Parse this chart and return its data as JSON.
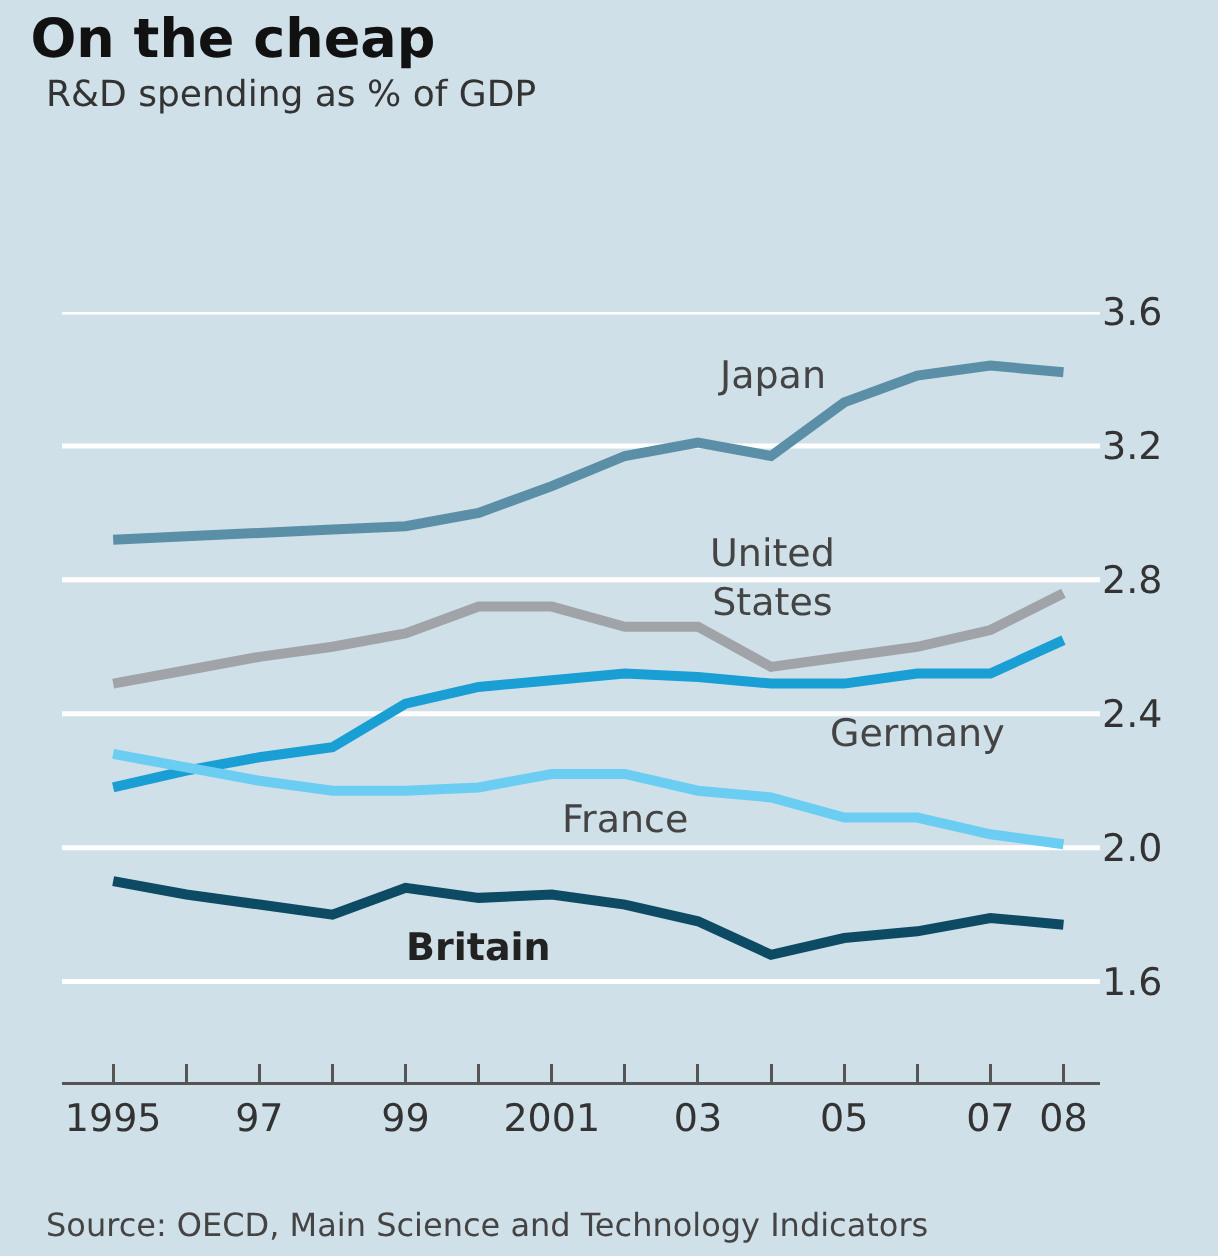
{
  "chart_data": {
    "type": "line",
    "title": "On the cheap",
    "subtitle": "R&D spending as % of GDP",
    "x": [
      1995,
      1996,
      1997,
      1998,
      1999,
      2000,
      2001,
      2002,
      2003,
      2004,
      2005,
      2006,
      2007,
      2008
    ],
    "series": [
      {
        "name": "Japan",
        "color": "#5b8fa8",
        "values": [
          2.92,
          2.93,
          2.94,
          2.95,
          2.96,
          3.0,
          3.08,
          3.17,
          3.21,
          3.17,
          3.33,
          3.41,
          3.44,
          3.42
        ]
      },
      {
        "name": "United States",
        "color": "#a0a4a8",
        "values": [
          2.49,
          2.53,
          2.57,
          2.6,
          2.64,
          2.72,
          2.72,
          2.66,
          2.66,
          2.54,
          2.57,
          2.6,
          2.65,
          2.76
        ]
      },
      {
        "name": "Germany",
        "color": "#1a9fd4",
        "values": [
          2.18,
          2.23,
          2.27,
          2.3,
          2.43,
          2.48,
          2.5,
          2.52,
          2.51,
          2.49,
          2.49,
          2.52,
          2.52,
          2.62
        ]
      },
      {
        "name": "France",
        "color": "#6ccdf2",
        "values": [
          2.28,
          2.24,
          2.2,
          2.17,
          2.17,
          2.18,
          2.22,
          2.22,
          2.17,
          2.15,
          2.09,
          2.09,
          2.04,
          2.01
        ]
      },
      {
        "name": "Britain",
        "color": "#0d4a63",
        "values": [
          1.9,
          1.86,
          1.83,
          1.8,
          1.88,
          1.85,
          1.86,
          1.83,
          1.78,
          1.68,
          1.73,
          1.75,
          1.79,
          1.77
        ]
      }
    ],
    "xlim": [
      1994.3,
      2008.5
    ],
    "xticks": [
      {
        "value": 1995,
        "label": "1995"
      },
      {
        "value": 1996,
        "label": null
      },
      {
        "value": 1997,
        "label": "97"
      },
      {
        "value": 1998,
        "label": null
      },
      {
        "value": 1999,
        "label": "99"
      },
      {
        "value": 2000,
        "label": null
      },
      {
        "value": 2001,
        "label": "2001"
      },
      {
        "value": 2002,
        "label": null
      },
      {
        "value": 2003,
        "label": "03"
      },
      {
        "value": 2004,
        "label": null
      },
      {
        "value": 2005,
        "label": "05"
      },
      {
        "value": 2006,
        "label": null
      },
      {
        "value": 2007,
        "label": "07"
      },
      {
        "value": 2008,
        "label": "08"
      }
    ],
    "ylim": [
      1.3,
      3.6
    ],
    "yticks": [
      1.6,
      {
        "value": 2,
        "label": "2.0"
      },
      2.4,
      2.8,
      3.2,
      3.6
    ],
    "grid": "y",
    "legend": false,
    "marker": "none",
    "line_style": "solid",
    "annotations": [
      "Source: OECD, Main Science and Technology Indicators"
    ]
  }
}
